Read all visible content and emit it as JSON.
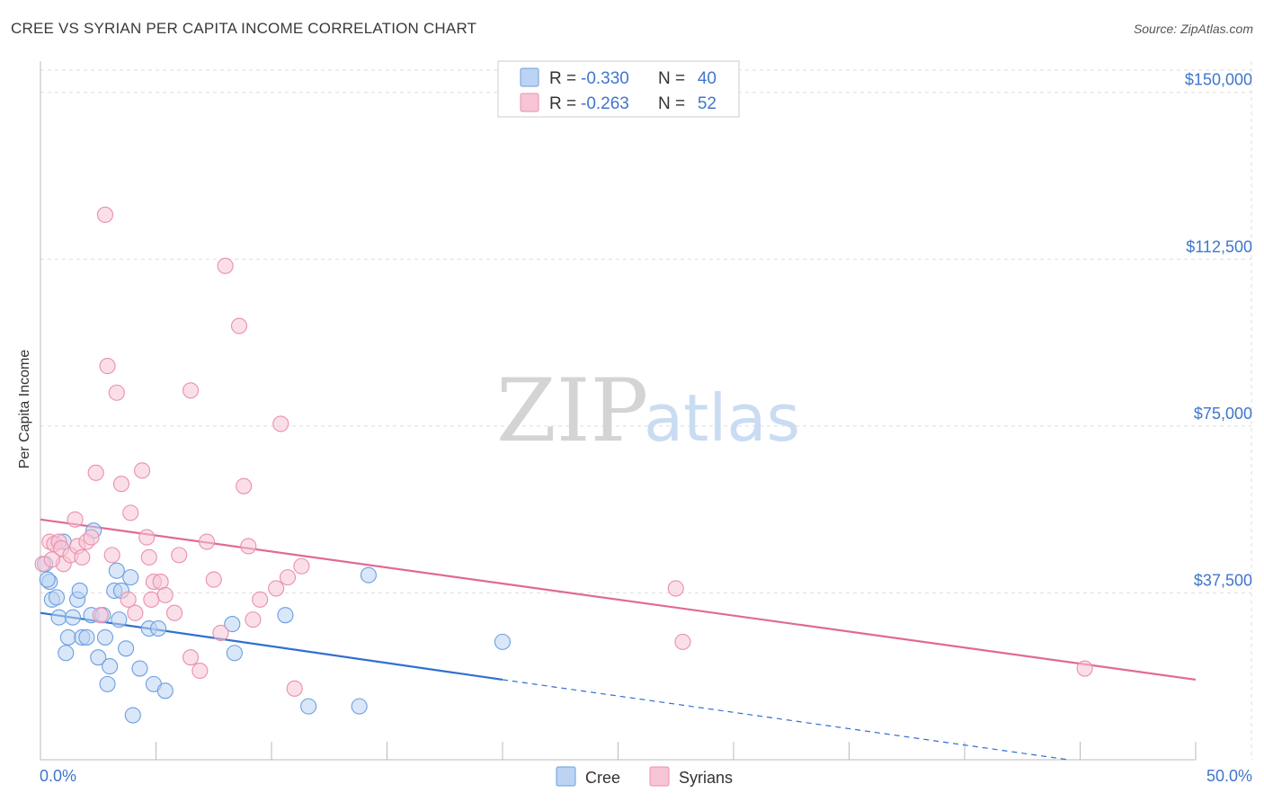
{
  "title": "CREE VS SYRIAN PER CAPITA INCOME CORRELATION CHART",
  "source": "Source: ZipAtlas.com",
  "watermark": {
    "part1": "ZIP",
    "part2": "atlas"
  },
  "chart_data": {
    "type": "scatter",
    "title": "CREE VS SYRIAN PER CAPITA INCOME CORRELATION CHART",
    "xlabel": "",
    "ylabel": "Per Capita Income",
    "xlim": [
      0,
      50
    ],
    "ylim": [
      0,
      155000
    ],
    "x_tick_labels": [
      "0.0%",
      "50.0%"
    ],
    "y_ticks": [
      {
        "value": 37500,
        "label": "$37,500"
      },
      {
        "value": 75000,
        "label": "$75,000"
      },
      {
        "value": 112500,
        "label": "$112,500"
      },
      {
        "value": 150000,
        "label": "$150,000"
      }
    ],
    "grid": true,
    "legend": {
      "entries": [
        {
          "r_label": "R =",
          "r": "-0.330",
          "n_label": "N =",
          "n": "40"
        },
        {
          "r_label": "R =",
          "r": "-0.263",
          "n_label": "N =",
          "n": "52"
        }
      ]
    },
    "series": [
      {
        "name": "Cree",
        "color": "#6a9fe0",
        "fill": "#bcd3f2",
        "line_color": "#2f6fd0",
        "trend": {
          "x0": 0,
          "y0": 33000,
          "x1": 20,
          "y1": 18000,
          "dash_to_x": 44.5,
          "dash_to_y": 0
        },
        "points": [
          [
            0.2,
            44000
          ],
          [
            0.4,
            40000
          ],
          [
            0.3,
            40500
          ],
          [
            0.5,
            36000
          ],
          [
            0.7,
            36500
          ],
          [
            0.8,
            32000
          ],
          [
            1.0,
            49000
          ],
          [
            1.1,
            24000
          ],
          [
            1.2,
            27500
          ],
          [
            1.4,
            32000
          ],
          [
            1.6,
            36000
          ],
          [
            1.7,
            38000
          ],
          [
            1.8,
            27500
          ],
          [
            2.0,
            27500
          ],
          [
            2.2,
            32500
          ],
          [
            2.3,
            51500
          ],
          [
            2.5,
            23000
          ],
          [
            2.7,
            32500
          ],
          [
            2.8,
            27500
          ],
          [
            2.9,
            17000
          ],
          [
            3.0,
            21000
          ],
          [
            3.2,
            38000
          ],
          [
            3.3,
            42500
          ],
          [
            3.4,
            31500
          ],
          [
            3.5,
            38000
          ],
          [
            3.7,
            25000
          ],
          [
            3.9,
            41000
          ],
          [
            4.0,
            10000
          ],
          [
            4.3,
            20500
          ],
          [
            4.7,
            29500
          ],
          [
            4.9,
            17000
          ],
          [
            5.1,
            29500
          ],
          [
            5.4,
            15500
          ],
          [
            8.3,
            30500
          ],
          [
            8.4,
            24000
          ],
          [
            10.6,
            32500
          ],
          [
            11.6,
            12000
          ],
          [
            13.8,
            12000
          ],
          [
            14.2,
            41500
          ],
          [
            20.0,
            26500
          ]
        ]
      },
      {
        "name": "Syrians",
        "color": "#ea8fac",
        "fill": "#f7c5d5",
        "line_color": "#e06a94",
        "trend": {
          "x0": 0,
          "y0": 54000,
          "x1": 50,
          "y1": 18000
        },
        "points": [
          [
            0.1,
            44000
          ],
          [
            0.4,
            49000
          ],
          [
            0.6,
            48500
          ],
          [
            0.8,
            49000
          ],
          [
            0.9,
            47500
          ],
          [
            1.0,
            44000
          ],
          [
            1.3,
            46000
          ],
          [
            1.5,
            54000
          ],
          [
            1.6,
            48000
          ],
          [
            1.8,
            45500
          ],
          [
            2.0,
            49000
          ],
          [
            2.2,
            50000
          ],
          [
            2.4,
            64500
          ],
          [
            2.6,
            32500
          ],
          [
            2.8,
            122500
          ],
          [
            2.9,
            88500
          ],
          [
            3.1,
            46000
          ],
          [
            3.3,
            82500
          ],
          [
            3.5,
            62000
          ],
          [
            3.8,
            36000
          ],
          [
            3.9,
            55500
          ],
          [
            4.1,
            33000
          ],
          [
            4.4,
            65000
          ],
          [
            4.6,
            50000
          ],
          [
            4.7,
            45500
          ],
          [
            4.8,
            36000
          ],
          [
            4.9,
            40000
          ],
          [
            5.2,
            40000
          ],
          [
            5.4,
            37000
          ],
          [
            5.8,
            33000
          ],
          [
            6.0,
            46000
          ],
          [
            6.5,
            23000
          ],
          [
            6.5,
            83000
          ],
          [
            6.9,
            20000
          ],
          [
            7.2,
            49000
          ],
          [
            7.5,
            40500
          ],
          [
            7.8,
            28500
          ],
          [
            8.0,
            111000
          ],
          [
            8.6,
            97500
          ],
          [
            8.8,
            61500
          ],
          [
            9.0,
            48000
          ],
          [
            9.2,
            31500
          ],
          [
            9.5,
            36000
          ],
          [
            10.2,
            38500
          ],
          [
            10.4,
            75500
          ],
          [
            10.7,
            41000
          ],
          [
            11.0,
            16000
          ],
          [
            11.3,
            43500
          ],
          [
            27.5,
            38500
          ],
          [
            27.8,
            26500
          ],
          [
            45.2,
            20500
          ],
          [
            0.5,
            45000
          ]
        ]
      }
    ]
  }
}
